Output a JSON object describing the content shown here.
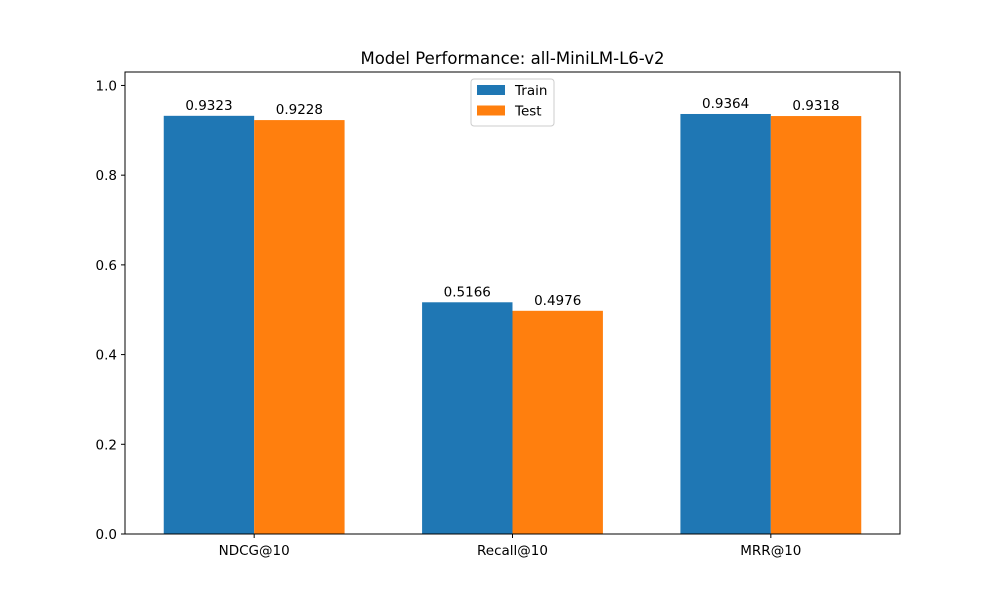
{
  "chart_data": {
    "type": "bar",
    "title": "Model Performance: all-MiniLM-L6-v2",
    "xlabel": "",
    "ylabel": "",
    "categories": [
      "NDCG@10",
      "Recall@10",
      "MRR@10"
    ],
    "series": [
      {
        "name": "Train",
        "color": "#1f77b4",
        "values": [
          0.9323,
          0.5166,
          0.9364
        ],
        "labels": [
          "0.9323",
          "0.5166",
          "0.9364"
        ]
      },
      {
        "name": "Test",
        "color": "#ff7f0e",
        "values": [
          0.9228,
          0.4976,
          0.9318
        ],
        "labels": [
          "0.9228",
          "0.4976",
          "0.9318"
        ]
      }
    ],
    "ylim": [
      0,
      1.03
    ],
    "yticks": [
      0.0,
      0.2,
      0.4,
      0.6,
      0.8,
      1.0
    ],
    "ytick_labels": [
      "0.0",
      "0.2",
      "0.4",
      "0.6",
      "0.8",
      "1.0"
    ],
    "grid": false,
    "legend_position": "top-center"
  }
}
